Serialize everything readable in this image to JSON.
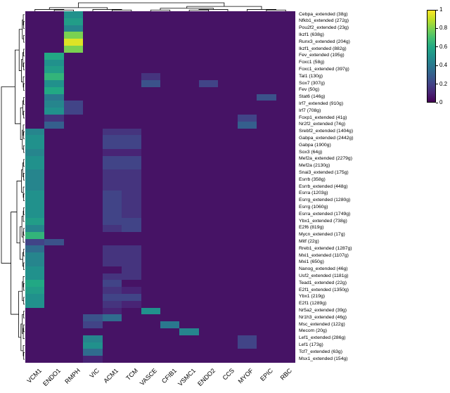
{
  "chart_data": {
    "type": "heatmap",
    "title": "",
    "xlabel": "",
    "ylabel": "",
    "colormap": "viridis",
    "value_range": [
      0,
      1
    ],
    "legend_position": "top-right",
    "dendrograms": [
      "rows-left",
      "columns-top"
    ],
    "columns": [
      "VCM1",
      "ENDO1",
      "RMPH",
      "VIC",
      "ACM1",
      "TCM",
      "VASCE",
      "CFIB1",
      "VSMC1",
      "ENDO2",
      "CCS",
      "MYOF",
      "EPIC",
      "RBC"
    ],
    "rows": [
      "Cebpa_extended (38g)",
      "Nfkb1_extended (272g)",
      "Pou2f2_extended (23g)",
      "Ikzf1 (638g)",
      "Runx3_extended (204g)",
      "Ikzf1_extended (882g)",
      "Fev_extended (195g)",
      "Foxc1 (58g)",
      "Foxc1_extended (397g)",
      "Tal1 (130g)",
      "Sox7 (307g)",
      "Fev (50g)",
      "Stat6 (146g)",
      "Irf7_extended (910g)",
      "Irf7 (708g)",
      "Foxp1_extended (41g)",
      "Nr2f2_extended (74g)",
      "Srebf2_extended (1404g)",
      "Gabpa_extended (2442g)",
      "Gabpa (1900g)",
      "Sox3 (64g)",
      "Mef2a_extended (2279g)",
      "Mef2a (2130g)",
      "Snai3_extended (175g)",
      "Esrrb (358g)",
      "Esrrb_extended (448g)",
      "Esrra (1203g)",
      "Esrrg_extended (1280g)",
      "Esrrg (1060g)",
      "Esrra_extended (1749g)",
      "Ybx1_extended (738g)",
      "E2f6 (819g)",
      "Mycn_extended (17g)",
      "Mitf (22g)",
      "Rreb1_extended (1287g)",
      "Mxi1_extended (1107g)",
      "Mxi1 (650g)",
      "Nanog_extended (46g)",
      "Usf2_extended (1181g)",
      "Tead1_extended (22g)",
      "E2f1_extended (1350g)",
      "Ybx1 (219g)",
      "E2f1 (1289g)",
      "Nr5a2_extended (39g)",
      "Nr1h3_extended (46g)",
      "Msc_extended (122g)",
      "Mecom (20g)",
      "Lef1_extended (286g)",
      "Lef1 (173g)",
      "Tcf7_extended (63g)",
      "Msx1_extended (154g)"
    ],
    "matrix": [
      [
        0.05,
        0.05,
        0.5,
        0.05,
        0.05,
        0.05,
        0.05,
        0.05,
        0.05,
        0.05,
        0.05,
        0.05,
        0.05,
        0.05
      ],
      [
        0.05,
        0.05,
        0.55,
        0.05,
        0.05,
        0.05,
        0.05,
        0.05,
        0.05,
        0.05,
        0.05,
        0.05,
        0.05,
        0.05
      ],
      [
        0.05,
        0.05,
        0.45,
        0.05,
        0.05,
        0.05,
        0.05,
        0.05,
        0.05,
        0.05,
        0.05,
        0.05,
        0.05,
        0.05
      ],
      [
        0.05,
        0.05,
        0.8,
        0.05,
        0.05,
        0.05,
        0.05,
        0.05,
        0.05,
        0.05,
        0.05,
        0.05,
        0.05,
        0.05
      ],
      [
        0.05,
        0.05,
        0.95,
        0.05,
        0.05,
        0.05,
        0.05,
        0.05,
        0.05,
        0.05,
        0.05,
        0.05,
        0.05,
        0.05
      ],
      [
        0.05,
        0.05,
        0.8,
        0.05,
        0.05,
        0.05,
        0.05,
        0.05,
        0.05,
        0.05,
        0.05,
        0.05,
        0.05,
        0.05
      ],
      [
        0.05,
        0.6,
        0.05,
        0.05,
        0.05,
        0.05,
        0.05,
        0.05,
        0.05,
        0.05,
        0.05,
        0.05,
        0.05,
        0.05
      ],
      [
        0.05,
        0.5,
        0.05,
        0.05,
        0.05,
        0.05,
        0.05,
        0.05,
        0.05,
        0.05,
        0.05,
        0.05,
        0.05,
        0.05
      ],
      [
        0.05,
        0.55,
        0.05,
        0.05,
        0.05,
        0.05,
        0.05,
        0.05,
        0.05,
        0.05,
        0.05,
        0.05,
        0.05,
        0.05
      ],
      [
        0.05,
        0.65,
        0.05,
        0.05,
        0.05,
        0.05,
        0.15,
        0.05,
        0.05,
        0.05,
        0.05,
        0.05,
        0.05,
        0.05
      ],
      [
        0.05,
        0.5,
        0.05,
        0.05,
        0.05,
        0.05,
        0.25,
        0.05,
        0.05,
        0.2,
        0.05,
        0.05,
        0.05,
        0.05
      ],
      [
        0.05,
        0.6,
        0.05,
        0.05,
        0.05,
        0.05,
        0.05,
        0.05,
        0.05,
        0.05,
        0.05,
        0.05,
        0.05,
        0.05
      ],
      [
        0.05,
        0.4,
        0.05,
        0.05,
        0.05,
        0.05,
        0.05,
        0.05,
        0.05,
        0.05,
        0.05,
        0.05,
        0.25,
        0.05
      ],
      [
        0.05,
        0.45,
        0.2,
        0.05,
        0.05,
        0.05,
        0.05,
        0.05,
        0.05,
        0.05,
        0.05,
        0.05,
        0.05,
        0.05
      ],
      [
        0.05,
        0.5,
        0.2,
        0.05,
        0.05,
        0.05,
        0.05,
        0.05,
        0.05,
        0.05,
        0.05,
        0.05,
        0.05,
        0.05
      ],
      [
        0.05,
        0.15,
        0.05,
        0.05,
        0.05,
        0.05,
        0.05,
        0.05,
        0.05,
        0.05,
        0.05,
        0.2,
        0.05,
        0.05
      ],
      [
        0.05,
        0.3,
        0.05,
        0.05,
        0.05,
        0.05,
        0.05,
        0.05,
        0.05,
        0.05,
        0.05,
        0.3,
        0.05,
        0.05
      ],
      [
        0.45,
        0.05,
        0.05,
        0.05,
        0.15,
        0.15,
        0.05,
        0.05,
        0.05,
        0.05,
        0.05,
        0.05,
        0.05,
        0.05
      ],
      [
        0.5,
        0.05,
        0.05,
        0.05,
        0.2,
        0.2,
        0.05,
        0.05,
        0.05,
        0.05,
        0.05,
        0.05,
        0.05,
        0.05
      ],
      [
        0.5,
        0.05,
        0.05,
        0.05,
        0.2,
        0.2,
        0.05,
        0.05,
        0.05,
        0.05,
        0.05,
        0.05,
        0.05,
        0.05
      ],
      [
        0.45,
        0.05,
        0.05,
        0.05,
        0.1,
        0.1,
        0.05,
        0.05,
        0.05,
        0.05,
        0.05,
        0.05,
        0.05,
        0.05
      ],
      [
        0.5,
        0.05,
        0.05,
        0.05,
        0.2,
        0.2,
        0.05,
        0.05,
        0.05,
        0.05,
        0.05,
        0.05,
        0.05,
        0.05
      ],
      [
        0.5,
        0.05,
        0.05,
        0.05,
        0.2,
        0.2,
        0.05,
        0.05,
        0.05,
        0.05,
        0.05,
        0.05,
        0.05,
        0.05
      ],
      [
        0.45,
        0.05,
        0.05,
        0.05,
        0.15,
        0.15,
        0.05,
        0.05,
        0.05,
        0.05,
        0.05,
        0.05,
        0.05,
        0.05
      ],
      [
        0.45,
        0.05,
        0.05,
        0.05,
        0.15,
        0.15,
        0.05,
        0.05,
        0.05,
        0.05,
        0.05,
        0.05,
        0.05,
        0.05
      ],
      [
        0.45,
        0.05,
        0.05,
        0.05,
        0.15,
        0.15,
        0.05,
        0.05,
        0.05,
        0.05,
        0.05,
        0.05,
        0.05,
        0.05
      ],
      [
        0.5,
        0.05,
        0.05,
        0.05,
        0.2,
        0.15,
        0.05,
        0.05,
        0.05,
        0.05,
        0.05,
        0.05,
        0.05,
        0.05
      ],
      [
        0.5,
        0.05,
        0.05,
        0.05,
        0.2,
        0.15,
        0.05,
        0.05,
        0.05,
        0.05,
        0.05,
        0.05,
        0.05,
        0.05
      ],
      [
        0.5,
        0.05,
        0.05,
        0.05,
        0.2,
        0.15,
        0.05,
        0.05,
        0.05,
        0.05,
        0.05,
        0.05,
        0.05,
        0.05
      ],
      [
        0.5,
        0.05,
        0.05,
        0.05,
        0.2,
        0.15,
        0.05,
        0.05,
        0.05,
        0.05,
        0.05,
        0.05,
        0.05,
        0.05
      ],
      [
        0.55,
        0.05,
        0.05,
        0.05,
        0.2,
        0.2,
        0.05,
        0.05,
        0.05,
        0.05,
        0.05,
        0.05,
        0.05,
        0.05
      ],
      [
        0.45,
        0.05,
        0.05,
        0.05,
        0.15,
        0.2,
        0.05,
        0.05,
        0.05,
        0.05,
        0.05,
        0.05,
        0.05,
        0.05
      ],
      [
        0.65,
        0.05,
        0.05,
        0.05,
        0.05,
        0.05,
        0.05,
        0.05,
        0.05,
        0.05,
        0.05,
        0.05,
        0.05,
        0.05
      ],
      [
        0.2,
        0.25,
        0.05,
        0.05,
        0.05,
        0.05,
        0.05,
        0.05,
        0.05,
        0.05,
        0.05,
        0.05,
        0.05,
        0.05
      ],
      [
        0.35,
        0.05,
        0.05,
        0.05,
        0.15,
        0.15,
        0.05,
        0.05,
        0.05,
        0.05,
        0.05,
        0.05,
        0.05,
        0.05
      ],
      [
        0.45,
        0.05,
        0.05,
        0.05,
        0.15,
        0.15,
        0.05,
        0.05,
        0.05,
        0.05,
        0.05,
        0.05,
        0.05,
        0.05
      ],
      [
        0.45,
        0.05,
        0.05,
        0.05,
        0.15,
        0.15,
        0.05,
        0.05,
        0.05,
        0.05,
        0.05,
        0.05,
        0.05,
        0.05
      ],
      [
        0.5,
        0.05,
        0.05,
        0.05,
        0.05,
        0.15,
        0.05,
        0.05,
        0.05,
        0.05,
        0.05,
        0.05,
        0.05,
        0.05
      ],
      [
        0.5,
        0.05,
        0.05,
        0.05,
        0.15,
        0.15,
        0.05,
        0.05,
        0.05,
        0.05,
        0.05,
        0.05,
        0.05,
        0.05
      ],
      [
        0.6,
        0.05,
        0.05,
        0.05,
        0.2,
        0.05,
        0.05,
        0.05,
        0.05,
        0.05,
        0.05,
        0.05,
        0.05,
        0.05
      ],
      [
        0.55,
        0.05,
        0.05,
        0.05,
        0.15,
        0.1,
        0.05,
        0.05,
        0.05,
        0.05,
        0.05,
        0.05,
        0.05,
        0.05
      ],
      [
        0.5,
        0.05,
        0.05,
        0.05,
        0.2,
        0.2,
        0.05,
        0.05,
        0.05,
        0.05,
        0.05,
        0.05,
        0.05,
        0.05
      ],
      [
        0.5,
        0.05,
        0.05,
        0.05,
        0.15,
        0.1,
        0.05,
        0.05,
        0.05,
        0.05,
        0.05,
        0.05,
        0.05,
        0.05
      ],
      [
        0.05,
        0.05,
        0.05,
        0.05,
        0.1,
        0.05,
        0.5,
        0.05,
        0.05,
        0.05,
        0.05,
        0.05,
        0.05,
        0.05
      ],
      [
        0.05,
        0.05,
        0.05,
        0.25,
        0.35,
        0.05,
        0.05,
        0.05,
        0.05,
        0.05,
        0.05,
        0.05,
        0.05,
        0.05
      ],
      [
        0.05,
        0.05,
        0.05,
        0.2,
        0.05,
        0.05,
        0.05,
        0.4,
        0.05,
        0.05,
        0.05,
        0.05,
        0.05,
        0.05
      ],
      [
        0.05,
        0.05,
        0.05,
        0.05,
        0.05,
        0.05,
        0.05,
        0.05,
        0.45,
        0.05,
        0.05,
        0.05,
        0.05,
        0.05
      ],
      [
        0.05,
        0.05,
        0.05,
        0.45,
        0.05,
        0.05,
        0.05,
        0.05,
        0.05,
        0.05,
        0.05,
        0.2,
        0.05,
        0.05
      ],
      [
        0.05,
        0.05,
        0.05,
        0.5,
        0.05,
        0.05,
        0.05,
        0.05,
        0.05,
        0.05,
        0.05,
        0.2,
        0.05,
        0.05
      ],
      [
        0.05,
        0.05,
        0.05,
        0.35,
        0.05,
        0.05,
        0.05,
        0.05,
        0.05,
        0.05,
        0.05,
        0.05,
        0.05,
        0.05
      ],
      [
        0.05,
        0.05,
        0.05,
        0.1,
        0.05,
        0.05,
        0.05,
        0.05,
        0.05,
        0.05,
        0.05,
        0.05,
        0.05,
        0.05
      ]
    ],
    "colormap_stops": [
      {
        "p": 0.0,
        "c": "#440154"
      },
      {
        "p": 0.1,
        "c": "#482475"
      },
      {
        "p": 0.2,
        "c": "#414487"
      },
      {
        "p": 0.3,
        "c": "#355f8d"
      },
      {
        "p": 0.4,
        "c": "#2a788e"
      },
      {
        "p": 0.5,
        "c": "#21918c"
      },
      {
        "p": 0.6,
        "c": "#22a884"
      },
      {
        "p": 0.7,
        "c": "#44bf70"
      },
      {
        "p": 0.8,
        "c": "#7ad151"
      },
      {
        "p": 0.9,
        "c": "#bddf26"
      },
      {
        "p": 1.0,
        "c": "#fde725"
      }
    ],
    "colorbar_ticks": [
      {
        "label": "1",
        "value": 1
      },
      {
        "label": "0.8",
        "value": 0.8
      },
      {
        "label": "0.6",
        "value": 0.6
      },
      {
        "label": "0.4",
        "value": 0.4
      },
      {
        "label": "0.2",
        "value": 0.2
      },
      {
        "label": "0",
        "value": 0
      }
    ]
  },
  "figure": {
    "background": "#ffffff",
    "line_color": "#000000"
  }
}
